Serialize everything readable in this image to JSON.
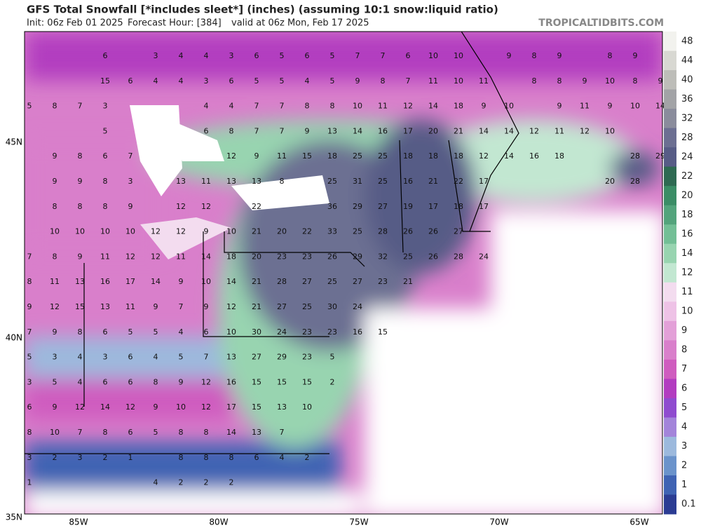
{
  "header": {
    "title": "GFS Total Snowfall [*includes sleet*] (inches) (assuming 10:1 snow:liquid ratio)",
    "init": "Init: 06z Feb 01 2025",
    "forecast_hour": "Forecast Hour: [384]",
    "valid": "valid at 06z Mon, Feb 17 2025",
    "brand": "TROPICALTIDBITS.COM"
  },
  "axes": {
    "lat_labels": [
      "45N",
      "40N",
      "35N"
    ],
    "lon_labels": [
      "85W",
      "80W",
      "75W",
      "70W",
      "65W"
    ]
  },
  "colorbar": {
    "levels": [
      48,
      44,
      40,
      36,
      32,
      28,
      24,
      22,
      20,
      18,
      16,
      14,
      12,
      11,
      10,
      9,
      8,
      7,
      6,
      5,
      4,
      3,
      2,
      1,
      0.1
    ],
    "colors": [
      "#f2f2ee",
      "#d8d8d2",
      "#bdbdb8",
      "#a2a3a6",
      "#8a8c9c",
      "#6c6f92",
      "#575c86",
      "#2e6a52",
      "#3b8d66",
      "#53a47c",
      "#73bf96",
      "#98d4b0",
      "#c2e7d1",
      "#f3dcef",
      "#eec2e6",
      "#e3a0d8",
      "#d97fcb",
      "#cf5cbf",
      "#b23cc0",
      "#8f4bcf",
      "#a384da",
      "#9cb9dd",
      "#6b93cb",
      "#3f63b3",
      "#2b3c93"
    ]
  },
  "map_labels": [
    [
      null,
      null,
      null,
      6,
      null,
      3,
      4,
      4,
      3,
      6,
      5,
      6,
      5,
      7,
      7,
      6,
      10,
      10,
      null,
      9,
      8,
      9,
      null,
      8,
      9,
      null
    ],
    [
      null,
      null,
      null,
      15,
      6,
      4,
      4,
      3,
      6,
      5,
      5,
      4,
      5,
      9,
      8,
      7,
      11,
      10,
      11,
      null,
      8,
      8,
      9,
      10,
      8,
      9
    ],
    [
      5,
      8,
      7,
      3,
      null,
      null,
      null,
      4,
      4,
      7,
      7,
      8,
      8,
      10,
      11,
      12,
      14,
      18,
      9,
      10,
      null,
      9,
      11,
      9,
      10,
      14
    ],
    [
      null,
      null,
      null,
      5,
      null,
      null,
      null,
      6,
      8,
      7,
      7,
      9,
      13,
      14,
      16,
      17,
      20,
      21,
      14,
      14,
      12,
      11,
      12,
      10,
      null,
      null
    ],
    [
      null,
      9,
      8,
      6,
      7,
      null,
      null,
      null,
      12,
      9,
      11,
      15,
      18,
      25,
      25,
      18,
      18,
      18,
      12,
      14,
      16,
      18,
      null,
      null,
      28,
      29
    ],
    [
      null,
      9,
      9,
      8,
      3,
      null,
      13,
      11,
      13,
      13,
      8,
      null,
      25,
      31,
      25,
      16,
      21,
      22,
      17,
      null,
      null,
      null,
      null,
      20,
      28,
      null
    ],
    [
      null,
      8,
      8,
      8,
      9,
      null,
      12,
      12,
      null,
      22,
      null,
      null,
      36,
      29,
      27,
      19,
      17,
      18,
      17,
      null,
      null,
      null,
      null,
      null,
      null,
      null
    ],
    [
      null,
      10,
      10,
      10,
      10,
      12,
      12,
      9,
      10,
      21,
      20,
      22,
      33,
      25,
      28,
      26,
      26,
      27,
      null,
      null,
      null,
      null,
      null,
      null,
      null,
      null
    ],
    [
      7,
      8,
      9,
      11,
      12,
      12,
      11,
      14,
      18,
      20,
      23,
      23,
      26,
      29,
      32,
      25,
      26,
      28,
      24,
      null,
      null,
      null,
      null,
      null,
      null,
      null
    ],
    [
      8,
      11,
      13,
      16,
      17,
      14,
      9,
      10,
      14,
      21,
      28,
      27,
      25,
      27,
      23,
      21,
      null,
      null,
      null,
      null,
      null,
      null,
      null,
      null,
      null,
      null
    ],
    [
      9,
      12,
      15,
      13,
      11,
      9,
      7,
      9,
      12,
      21,
      27,
      25,
      30,
      24,
      null,
      null,
      null,
      null,
      null,
      null,
      null,
      null,
      null,
      null,
      null,
      null
    ],
    [
      7,
      9,
      8,
      6,
      5,
      5,
      4,
      6,
      10,
      30,
      24,
      23,
      23,
      16,
      15,
      null,
      null,
      null,
      null,
      null,
      null,
      null,
      null,
      null,
      null,
      null
    ],
    [
      5,
      3,
      4,
      3,
      6,
      4,
      5,
      7,
      13,
      27,
      29,
      23,
      5,
      null,
      null,
      null,
      null,
      null,
      null,
      null,
      null,
      null,
      null,
      null,
      null,
      null
    ],
    [
      3,
      5,
      4,
      6,
      6,
      8,
      9,
      12,
      16,
      15,
      15,
      15,
      2,
      null,
      null,
      null,
      null,
      null,
      null,
      null,
      null,
      null,
      null,
      null,
      null,
      null
    ],
    [
      6,
      9,
      12,
      14,
      12,
      9,
      10,
      12,
      17,
      15,
      13,
      10,
      null,
      null,
      null,
      null,
      null,
      null,
      null,
      null,
      null,
      null,
      null,
      null,
      null,
      null
    ],
    [
      8,
      10,
      7,
      8,
      6,
      5,
      8,
      8,
      14,
      13,
      7,
      null,
      null,
      null,
      null,
      null,
      null,
      null,
      null,
      null,
      null,
      null,
      null,
      null,
      null,
      null
    ],
    [
      3,
      2,
      3,
      2,
      1,
      null,
      8,
      8,
      8,
      6,
      4,
      2,
      null,
      null,
      null,
      null,
      null,
      null,
      null,
      null,
      null,
      null,
      null,
      null,
      null,
      null
    ],
    [
      1,
      null,
      null,
      null,
      null,
      4,
      2,
      2,
      2,
      null,
      null,
      null,
      null,
      null,
      null,
      null,
      null,
      null,
      null,
      null,
      null,
      null,
      null,
      null,
      null,
      null
    ]
  ]
}
